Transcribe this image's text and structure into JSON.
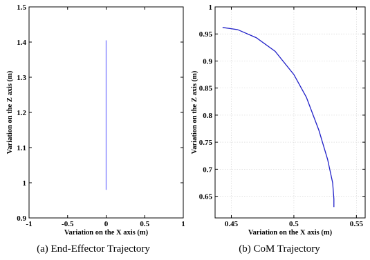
{
  "chart_data": [
    {
      "type": "line",
      "caption": "(a) End-Effector Trajectory",
      "xlabel": "Variation on the X axis (m)",
      "ylabel": "Variation on the Z axis (m)",
      "xlim": [
        -1,
        1
      ],
      "ylim": [
        0.9,
        1.5
      ],
      "xticks": [
        -1,
        -0.5,
        0,
        0.5,
        1
      ],
      "xtick_labels": [
        "-1",
        "-0.5",
        "0",
        "0.5",
        "1"
      ],
      "yticks": [
        0.9,
        1.0,
        1.1,
        1.2,
        1.3,
        1.4,
        1.5
      ],
      "ytick_labels": [
        "0.9",
        "1",
        "1.1",
        "1.2",
        "1.3",
        "1.4",
        "1.5"
      ],
      "grid": false,
      "series": [
        {
          "color": "#7a7aff",
          "x": [
            0,
            0
          ],
          "y": [
            0.98,
            1.405
          ]
        }
      ]
    },
    {
      "type": "line",
      "caption": "(b) CoM Trajectory",
      "xlabel": "Variation on the X axis (m)",
      "ylabel": "Variation on the Z axis (m)",
      "xlim": [
        0.437,
        0.557
      ],
      "ylim": [
        0.61,
        1.0
      ],
      "xticks": [
        0.45,
        0.5,
        0.55
      ],
      "xtick_labels": [
        "0.45",
        "0.5",
        "0.55"
      ],
      "yticks": [
        0.65,
        0.7,
        0.75,
        0.8,
        0.85,
        0.9,
        0.95,
        1.0
      ],
      "ytick_labels": [
        "0.65",
        "0.7",
        "0.75",
        "0.8",
        "0.85",
        "0.9",
        "0.95",
        "1"
      ],
      "grid": true,
      "series": [
        {
          "color": "#2020c8",
          "x": [
            0.443,
            0.455,
            0.47,
            0.485,
            0.5,
            0.51,
            0.52,
            0.527,
            0.531,
            0.532,
            0.532
          ],
          "y": [
            0.962,
            0.958,
            0.943,
            0.918,
            0.875,
            0.833,
            0.772,
            0.718,
            0.675,
            0.645,
            0.63
          ]
        }
      ]
    }
  ]
}
